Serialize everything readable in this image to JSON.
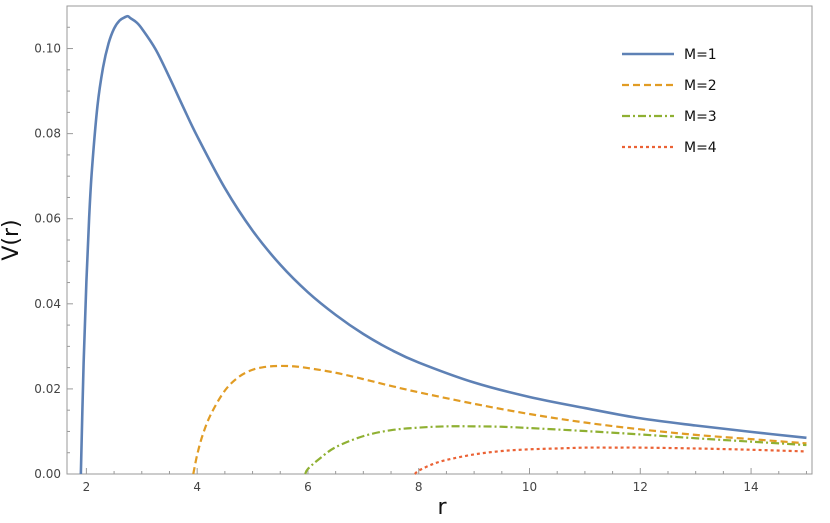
{
  "chart_data": {
    "type": "line",
    "title": "",
    "xlabel": "r",
    "ylabel": "V(r)",
    "xlim": [
      1.65,
      15.1
    ],
    "ylim": [
      0,
      0.11
    ],
    "xticks": [
      2,
      4,
      6,
      8,
      10,
      12,
      14
    ],
    "xtick_labels": [
      "2",
      "4",
      "6",
      "8",
      "10",
      "12",
      "14"
    ],
    "yticks": [
      0,
      0.02,
      0.04,
      0.06,
      0.08,
      0.1
    ],
    "ytick_labels": [
      "0.00",
      "0.02",
      "0.04",
      "0.06",
      "0.08",
      "0.10"
    ],
    "grid": false,
    "legend_position": "top-right",
    "series": [
      {
        "name": "M=1",
        "color": "#5e81b5",
        "style": "solid",
        "x": [
          1.9,
          1.95,
          2.0,
          2.05,
          2.1,
          2.2,
          2.3,
          2.4,
          2.5,
          2.6,
          2.7,
          2.75,
          2.8,
          2.9,
          3.0,
          3.25,
          3.5,
          3.75,
          4.0,
          4.5,
          5.0,
          5.5,
          6.0,
          6.5,
          7.0,
          7.5,
          8.0,
          9.0,
          10.0,
          11.0,
          12.0,
          13.0,
          14.0,
          15.0
        ],
        "y": [
          0.0,
          0.0261,
          0.0452,
          0.0603,
          0.0715,
          0.0865,
          0.0955,
          0.1012,
          0.1047,
          0.1066,
          0.1074,
          0.1076,
          0.1071,
          0.1062,
          0.1047,
          0.0998,
          0.0932,
          0.0862,
          0.0794,
          0.0672,
          0.0572,
          0.0492,
          0.0427,
          0.0374,
          0.0329,
          0.0292,
          0.0262,
          0.0215,
          0.0181,
          0.0155,
          0.0131,
          0.0114,
          0.0099,
          0.0085
        ]
      },
      {
        "name": "M=2",
        "color": "#e19c24",
        "style": "dashed",
        "x": [
          3.93,
          4.0,
          4.1,
          4.25,
          4.5,
          4.75,
          5.0,
          5.25,
          5.5,
          5.75,
          6.0,
          6.5,
          7.0,
          7.5,
          8.0,
          9.0,
          10.0,
          11.0,
          12.0,
          13.0,
          14.0,
          15.0
        ],
        "y": [
          0.0,
          0.0045,
          0.0092,
          0.0141,
          0.0196,
          0.0228,
          0.0245,
          0.0252,
          0.0254,
          0.0253,
          0.0249,
          0.0238,
          0.0223,
          0.0207,
          0.0192,
          0.0165,
          0.0141,
          0.0121,
          0.0105,
          0.0092,
          0.0082,
          0.0072
        ]
      },
      {
        "name": "M=3",
        "color": "#8fb032",
        "style": "dash-dot",
        "x": [
          5.95,
          6.0,
          6.2,
          6.5,
          7.0,
          7.5,
          8.0,
          8.5,
          9.0,
          9.5,
          10.0,
          11.0,
          12.0,
          13.0,
          14.0,
          15.0
        ],
        "y": [
          0.0,
          0.0012,
          0.0035,
          0.0063,
          0.0089,
          0.0103,
          0.0109,
          0.0112,
          0.0112,
          0.0111,
          0.0108,
          0.0101,
          0.0093,
          0.0084,
          0.0076,
          0.0068
        ]
      },
      {
        "name": "M=4",
        "color": "#eb6235",
        "style": "dotted",
        "x": [
          7.93,
          8.0,
          8.25,
          8.5,
          9.0,
          9.5,
          10.0,
          10.5,
          11.0,
          11.5,
          12.0,
          13.0,
          14.0,
          15.0
        ],
        "y": [
          0.0,
          0.0008,
          0.0023,
          0.0033,
          0.0046,
          0.0054,
          0.0058,
          0.006,
          0.0062,
          0.0062,
          0.0062,
          0.006,
          0.0057,
          0.0053
        ]
      }
    ]
  }
}
